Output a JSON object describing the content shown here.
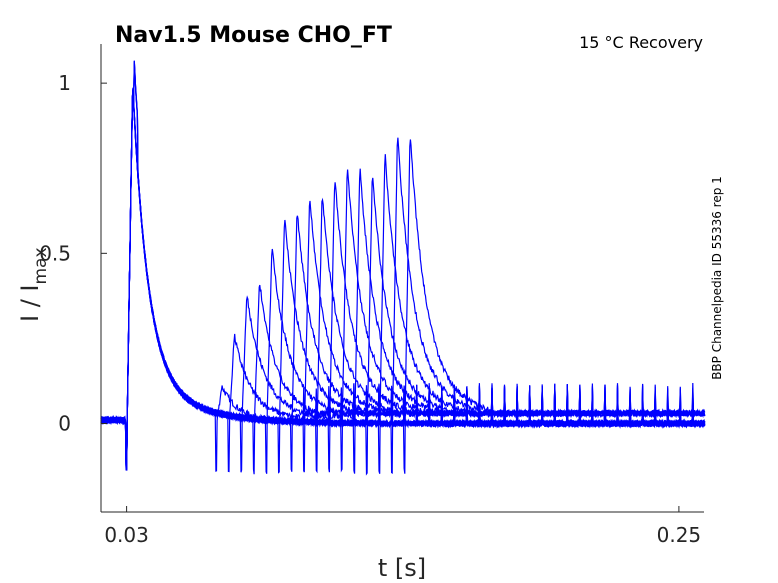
{
  "chart_data": {
    "type": "line",
    "title": "Nav1.5  Mouse  CHO_FT",
    "subtitle": "15 °C  Recovery",
    "side_label": "BBP Channelpedia ID 55336 rep 1",
    "xlabel": "t [s]",
    "ylabel_main": "I / I",
    "ylabel_sub": "max",
    "xlim": [
      0.0198,
      0.26
    ],
    "ylim": [
      -0.26,
      1.115
    ],
    "xticks": [
      0.03,
      0.25
    ],
    "xtick_labels": [
      "0.03",
      "0.25"
    ],
    "yticks": [
      0,
      0.5,
      1
    ],
    "ytick_labels": [
      "0",
      "0.5",
      "1"
    ],
    "color": "#0000ff",
    "first_pulse_time": 0.0302,
    "recovery_pulse_start": 0.0654,
    "recovery_step": 0.005,
    "second_pulse_peaks": [
      0.11,
      0.26,
      0.38,
      0.42,
      0.52,
      0.61,
      0.63,
      0.67,
      0.68,
      0.73,
      0.76,
      0.76,
      0.74,
      0.8,
      0.86,
      0.86
    ]
  }
}
